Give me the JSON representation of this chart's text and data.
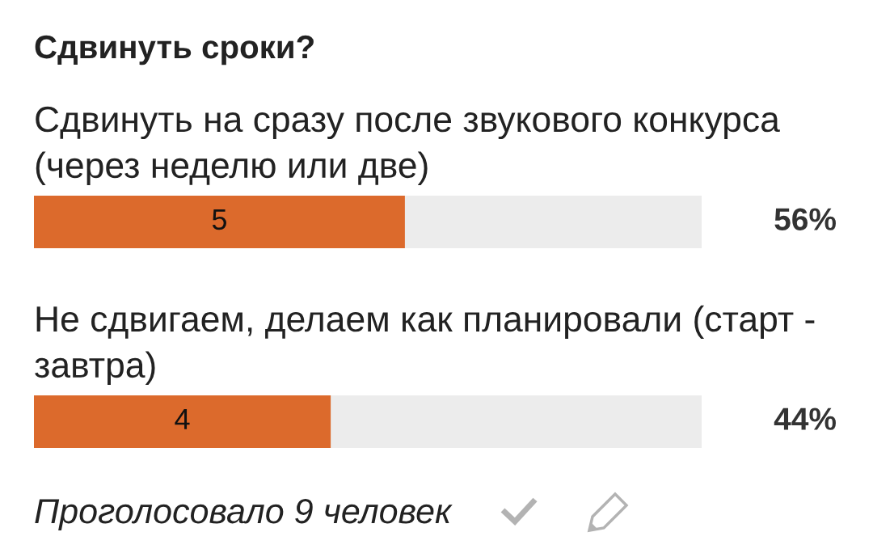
{
  "chart_data": {
    "type": "bar",
    "orientation": "horizontal",
    "title": "Сдвинуть сроки?",
    "categories": [
      "Сдвинуть на сразу после звукового конкурса (через неделю или две)",
      "Не сдвигаем, делаем как планировали (старт - завтра)"
    ],
    "values": [
      5,
      4
    ],
    "color": "#dc6a2c",
    "xlim": [
      0,
      9
    ],
    "data_labels": true,
    "tick_labels": false,
    "annotations": [
      "56%",
      "44%",
      "Проголосовало 9 человек"
    ]
  }
}
